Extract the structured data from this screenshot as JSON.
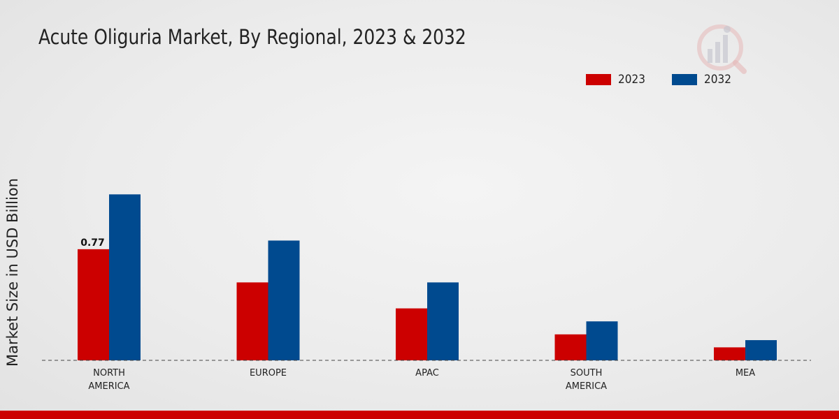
{
  "chart_data": {
    "type": "bar",
    "title": "Acute Oliguria Market, By Regional, 2023 & 2032",
    "xlabel": "",
    "ylabel": "Market Size in USD Billion",
    "categories": [
      "NORTH\nAMERICA",
      "EUROPE",
      "APAC",
      "SOUTH\nAMERICA",
      "MEA"
    ],
    "series": [
      {
        "name": "2023",
        "color": "#cc0000",
        "values": [
          0.77,
          0.54,
          0.36,
          0.18,
          0.09
        ]
      },
      {
        "name": "2032",
        "color": "#004a8f",
        "values": [
          1.15,
          0.83,
          0.54,
          0.27,
          0.14
        ]
      }
    ],
    "data_labels": [
      {
        "series": "2023",
        "category_index": 0,
        "text": "0.77"
      }
    ],
    "ylim": [
      0,
      2.1
    ],
    "legend_position": "top-right",
    "grid": false
  },
  "logo": {
    "name": "brand-logo-icon"
  },
  "colors": {
    "accent": "#cc0000",
    "secondary": "#004a8f"
  }
}
